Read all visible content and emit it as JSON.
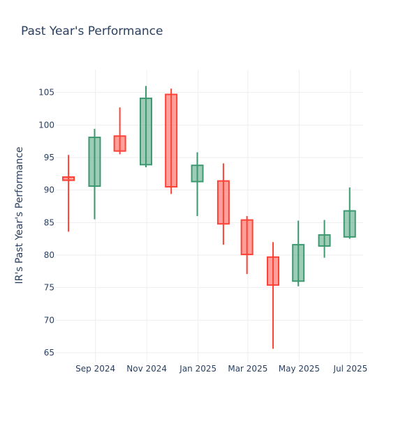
{
  "chart_data": {
    "type": "candlestick",
    "title": "Past Year's Performance",
    "xlabel": "",
    "ylabel": "IR's Past Year's Performance",
    "ylim": [
      63.5,
      108.5
    ],
    "xlim": [
      "2024-07-16",
      "2025-07-16"
    ],
    "grid": true,
    "legend": "none",
    "colors": {
      "increasing": "#3d9970",
      "decreasing": "#ff4136"
    },
    "y_ticks": [
      65,
      70,
      75,
      80,
      85,
      90,
      95,
      100,
      105
    ],
    "x_ticks": [
      {
        "date": "2024-09-01",
        "label": "Sep 2024"
      },
      {
        "date": "2024-11-01",
        "label": "Nov 2024"
      },
      {
        "date": "2025-01-01",
        "label": "Jan 2025"
      },
      {
        "date": "2025-03-01",
        "label": "Mar 2025"
      },
      {
        "date": "2025-05-01",
        "label": "May 2025"
      },
      {
        "date": "2025-07-01",
        "label": "Jul 2025"
      }
    ],
    "candles": [
      {
        "date": "2024-07-31",
        "open": 92.0,
        "high": 95.4,
        "low": 83.6,
        "close": 91.5
      },
      {
        "date": "2024-08-31",
        "open": 90.6,
        "high": 99.4,
        "low": 85.5,
        "close": 98.1
      },
      {
        "date": "2024-09-30",
        "open": 98.3,
        "high": 102.7,
        "low": 95.5,
        "close": 96.0
      },
      {
        "date": "2024-10-31",
        "open": 93.9,
        "high": 106.0,
        "low": 93.5,
        "close": 104.1
      },
      {
        "date": "2024-11-30",
        "open": 104.7,
        "high": 105.6,
        "low": 89.4,
        "close": 90.5
      },
      {
        "date": "2024-12-31",
        "open": 91.3,
        "high": 95.8,
        "low": 86.0,
        "close": 93.8
      },
      {
        "date": "2025-01-31",
        "open": 91.4,
        "high": 94.1,
        "low": 81.6,
        "close": 84.8
      },
      {
        "date": "2025-02-28",
        "open": 85.4,
        "high": 86.0,
        "low": 77.1,
        "close": 80.1
      },
      {
        "date": "2025-03-31",
        "open": 79.7,
        "high": 82.0,
        "low": 65.6,
        "close": 75.4
      },
      {
        "date": "2025-04-30",
        "open": 76.0,
        "high": 85.3,
        "low": 75.2,
        "close": 81.6
      },
      {
        "date": "2025-05-31",
        "open": 81.4,
        "high": 85.4,
        "low": 79.6,
        "close": 83.1
      },
      {
        "date": "2025-06-30",
        "open": 82.8,
        "high": 90.4,
        "low": 82.5,
        "close": 86.8
      }
    ]
  }
}
